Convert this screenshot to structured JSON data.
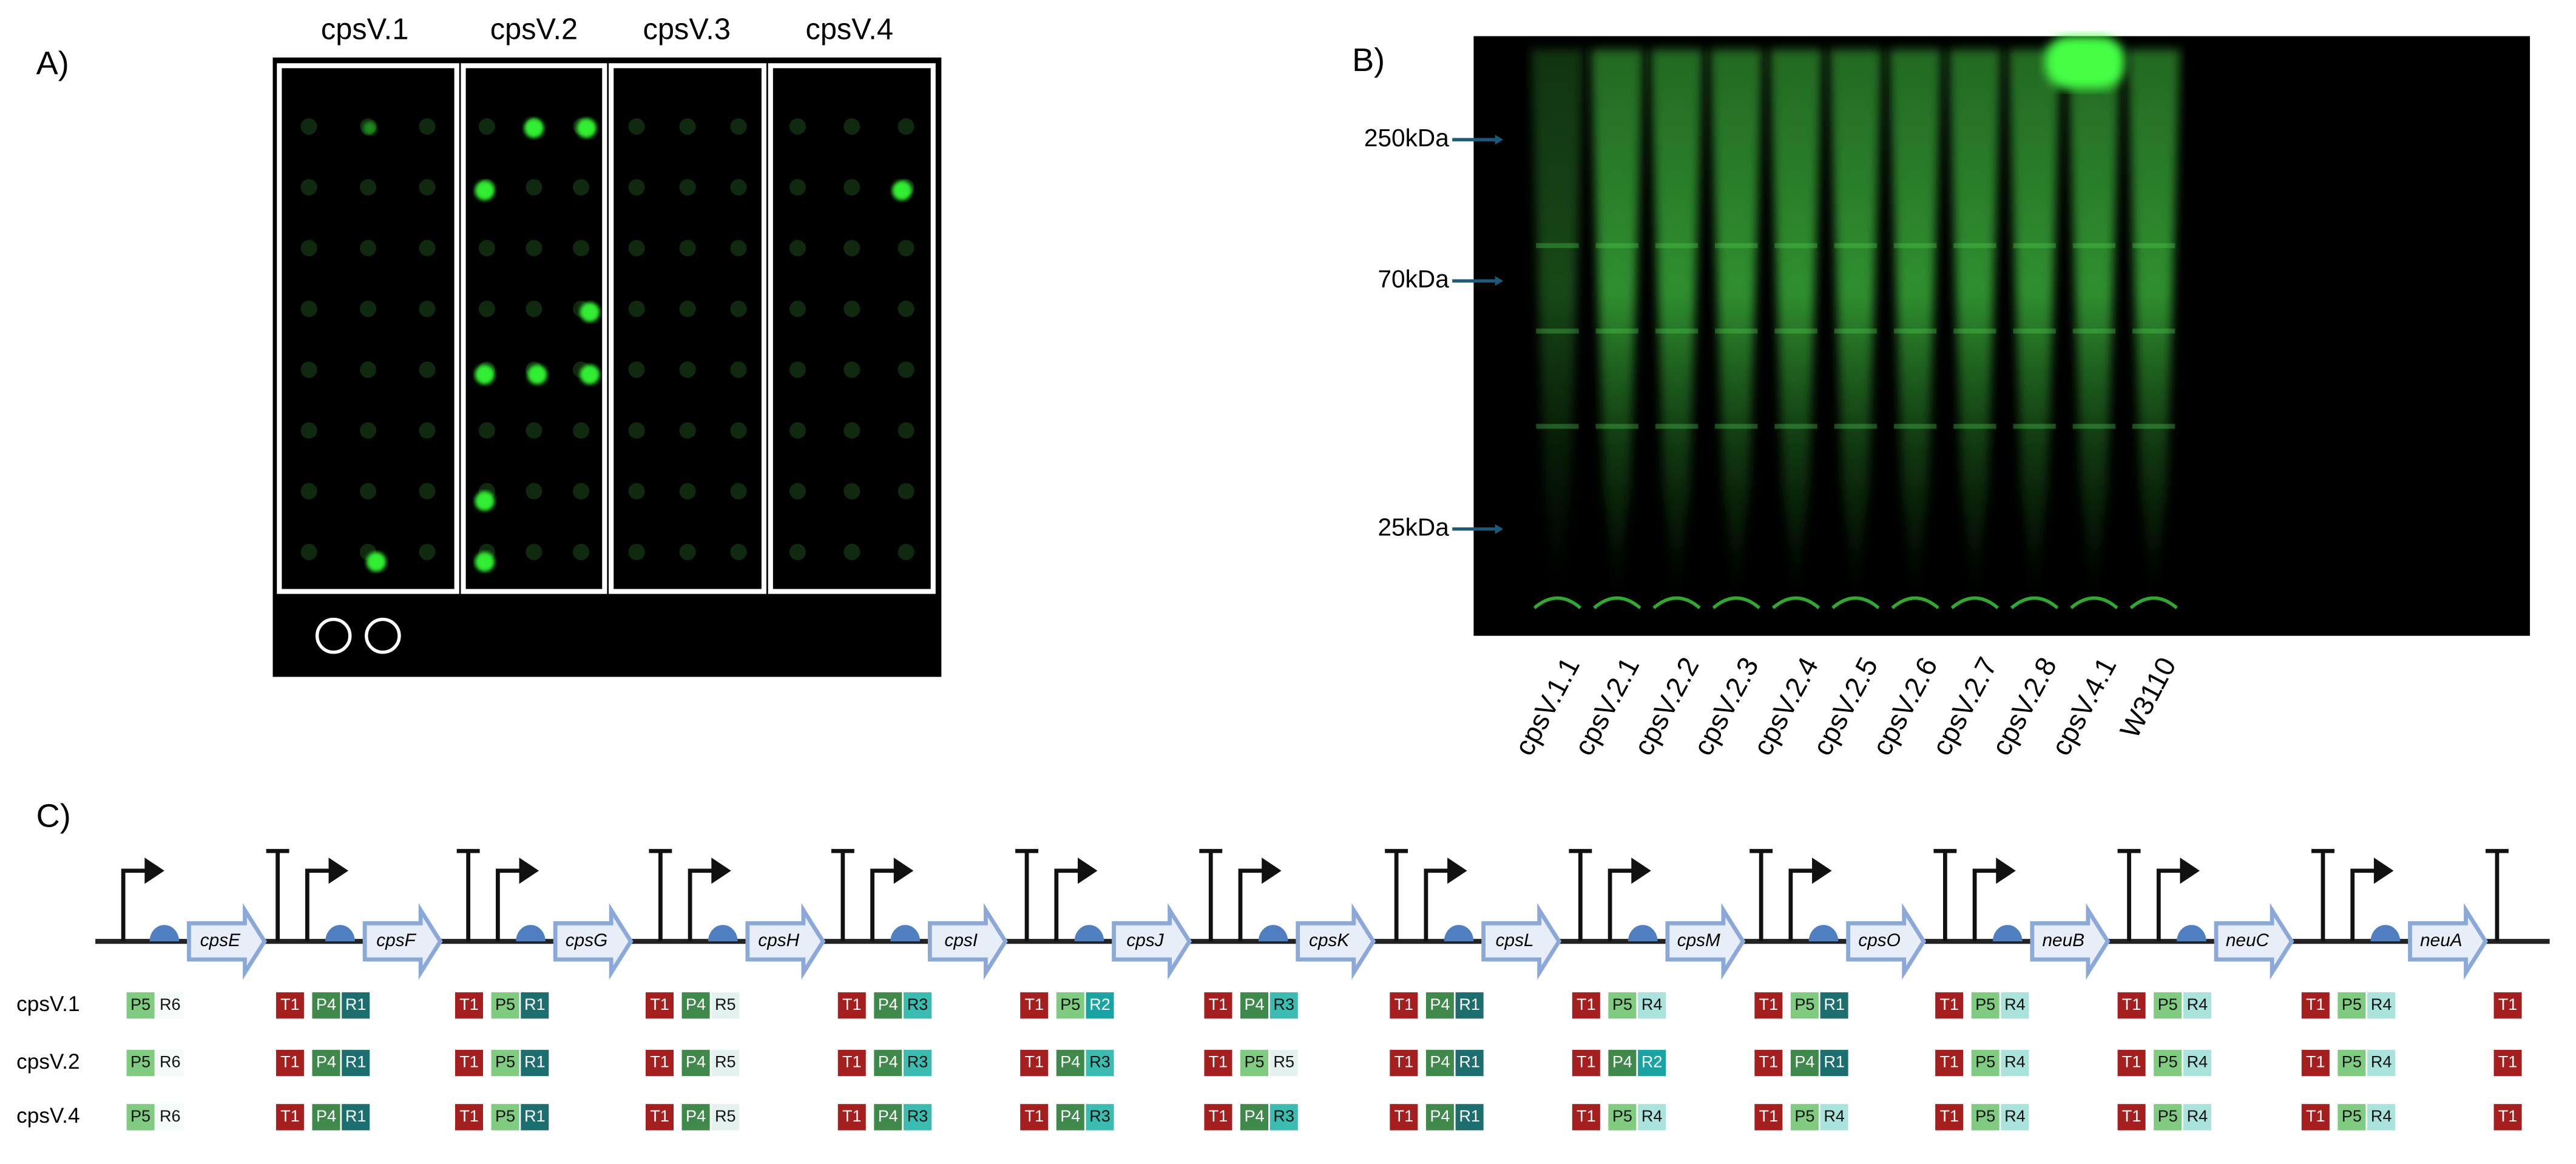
{
  "panel_a": {
    "label": "A)",
    "columns": [
      "cpsV.1",
      "cpsV.2",
      "cpsV.3",
      "cpsV.4"
    ]
  },
  "panel_b": {
    "label": "B)",
    "markers": [
      "250kDa",
      "70kDa",
      "25kDa"
    ],
    "lanes": [
      "cpsV.1.1",
      "cpsV.2.1",
      "cpsV.2.2",
      "cpsV.2.3",
      "cpsV.2.4",
      "cpsV.2.5",
      "cpsV.2.6",
      "cpsV.2.7",
      "cpsV.2.8",
      "cpsV.4.1",
      "W3110"
    ]
  },
  "panel_c": {
    "label": "C)",
    "genes": [
      "cpsE",
      "cpsF",
      "cpsG",
      "cpsH",
      "cpsI",
      "cpsJ",
      "cpsK",
      "cpsL",
      "cpsM",
      "cpsO",
      "neuB",
      "neuC",
      "neuA"
    ],
    "rows": [
      {
        "name": "cpsV.1",
        "parts": [
          [
            "P5",
            "R6"
          ],
          [
            "T1",
            "P4",
            "R1"
          ],
          [
            "T1",
            "P5",
            "R1"
          ],
          [
            "T1",
            "P4",
            "R5"
          ],
          [
            "T1",
            "P4",
            "R3"
          ],
          [
            "T1",
            "P5",
            "R2"
          ],
          [
            "T1",
            "P4",
            "R3"
          ],
          [
            "T1",
            "P4",
            "R1"
          ],
          [
            "T1",
            "P5",
            "R4"
          ],
          [
            "T1",
            "P5",
            "R1"
          ],
          [
            "T1",
            "P5",
            "R4"
          ],
          [
            "T1",
            "P5",
            "R4"
          ],
          [
            "T1",
            "P5",
            "R4"
          ],
          [
            "T1"
          ]
        ]
      },
      {
        "name": "cpsV.2",
        "parts": [
          [
            "P5",
            "R6"
          ],
          [
            "T1",
            "P4",
            "R1"
          ],
          [
            "T1",
            "P5",
            "R1"
          ],
          [
            "T1",
            "P4",
            "R5"
          ],
          [
            "T1",
            "P4",
            "R3"
          ],
          [
            "T1",
            "P4",
            "R3"
          ],
          [
            "T1",
            "P5",
            "R5"
          ],
          [
            "T1",
            "P4",
            "R1"
          ],
          [
            "T1",
            "P4",
            "R2"
          ],
          [
            "T1",
            "P4",
            "R1"
          ],
          [
            "T1",
            "P5",
            "R4"
          ],
          [
            "T1",
            "P5",
            "R4"
          ],
          [
            "T1",
            "P5",
            "R4"
          ],
          [
            "T1"
          ]
        ]
      },
      {
        "name": "cpsV.4",
        "parts": [
          [
            "P5",
            "R6"
          ],
          [
            "T1",
            "P4",
            "R1"
          ],
          [
            "T1",
            "P5",
            "R1"
          ],
          [
            "T1",
            "P4",
            "R5"
          ],
          [
            "T1",
            "P4",
            "R3"
          ],
          [
            "T1",
            "P4",
            "R3"
          ],
          [
            "T1",
            "P4",
            "R3"
          ],
          [
            "T1",
            "P4",
            "R1"
          ],
          [
            "T1",
            "P5",
            "R4"
          ],
          [
            "T1",
            "P5",
            "R4"
          ],
          [
            "T1",
            "P5",
            "R4"
          ],
          [
            "T1",
            "P5",
            "R4"
          ],
          [
            "T1",
            "P5",
            "R4"
          ],
          [
            "T1"
          ]
        ]
      }
    ]
  }
}
